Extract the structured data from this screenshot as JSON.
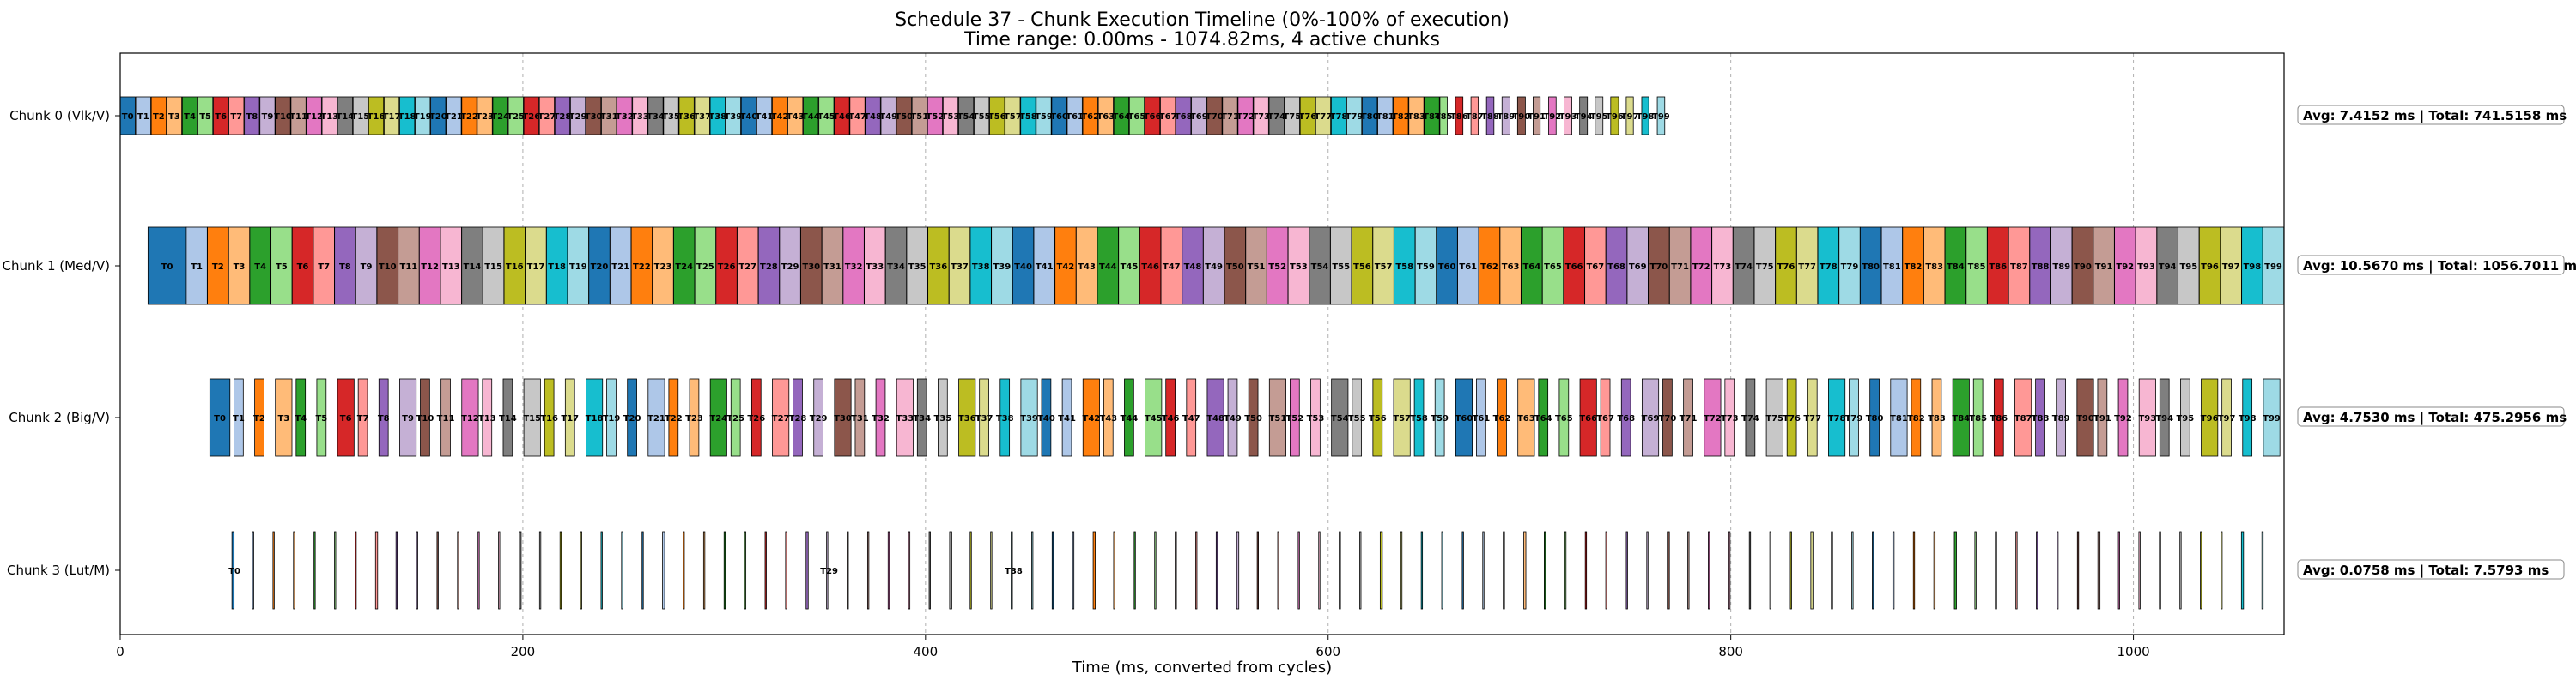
{
  "chart_data": {
    "type": "gantt",
    "title": "Schedule 37 - Chunk Execution Timeline (0%-100% of execution)",
    "subtitle": "Time range: 0.00ms - 1074.82ms, 4 active chunks",
    "xlabel": "Time (ms, converted from cycles)",
    "xlim": [
      0,
      1074.82
    ],
    "xticks": [
      0,
      200,
      400,
      600,
      800,
      1000
    ],
    "grid": true,
    "palette": [
      "#1f77b4",
      "#aec7e8",
      "#ff7f0e",
      "#ffbb78",
      "#2ca02c",
      "#98df8a",
      "#d62728",
      "#ff9896",
      "#9467bd",
      "#c5b0d5",
      "#8c564b",
      "#c49c94",
      "#e377c2",
      "#f7b6d2",
      "#7f7f7f",
      "#c7c7c7",
      "#bcbd22",
      "#dbdb8d",
      "#17becf",
      "#9edae5"
    ],
    "chunks": [
      {
        "name": "Chunk 0 (Vlk/V)",
        "start": 0,
        "end": 771.2,
        "avg": 7.4152,
        "tasks": 100,
        "stats": "Avg: 7.4152 ms | Total: 741.5158 ms"
      },
      {
        "name": "Chunk 1 (Med/V)",
        "start": 13.8,
        "end": 1074.82,
        "avg": 10.567,
        "tasks": 100,
        "stats": "Avg: 10.5670 ms | Total: 1056.7011 ms"
      },
      {
        "name": "Chunk 2 (Big/V)",
        "start": 44.5,
        "end": 1074.82,
        "avg": 4.753,
        "tasks": 100,
        "stats": "Avg: 4.7530 ms | Total: 475.2956 ms"
      },
      {
        "name": "Chunk 3 (Lut/M)",
        "start": 55.5,
        "end": 1074.0,
        "avg": 0.0758,
        "tasks": 100,
        "stats": "Avg: 0.0758 ms | Total: 7.5793 ms"
      }
    ]
  }
}
